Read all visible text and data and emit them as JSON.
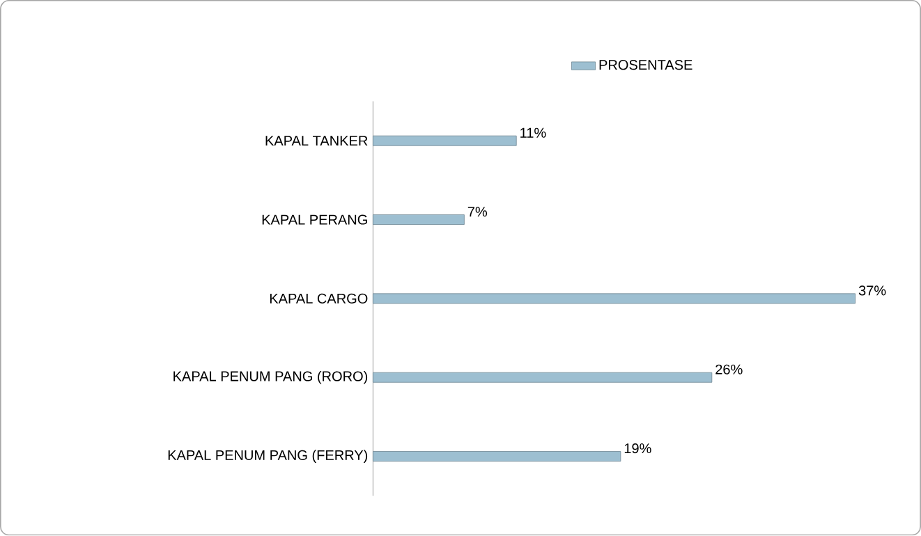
{
  "chart_data": {
    "type": "bar",
    "orientation": "horizontal",
    "categories": [
      "KAPAL TANKER",
      "KAPAL PERANG",
      "KAPAL CARGO",
      "KAPAL PENUM PANG (RORO)",
      "KAPAL PENUM PANG (FERRY)"
    ],
    "series": [
      {
        "name": "PROSENTASE",
        "color": "#9dbfd1",
        "values": [
          11,
          7,
          37,
          26,
          19
        ],
        "value_labels": [
          "11%",
          "7%",
          "37%",
          "26%",
          "19%"
        ]
      }
    ],
    "legend": "top"
  }
}
